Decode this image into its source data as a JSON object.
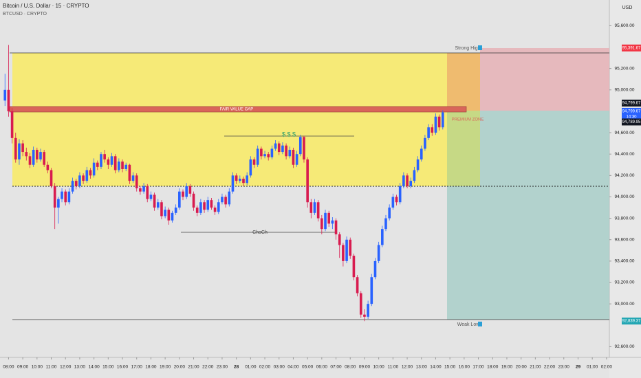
{
  "chart_data": {
    "type": "candlestick",
    "title": "Bitcoin / U.S. Dollar · 15 · CRYPTO",
    "subtitle": "BTCUSD · CRYPTO",
    "currency": "USD",
    "up_color": "#2962ff",
    "down_color": "#d81b4f",
    "grid": false,
    "xlim": [
      -0.6,
      42.2
    ],
    "ylim": [
      92500,
      95840
    ],
    "yticks": [
      {
        "value": 95600,
        "label": "95,600.00"
      },
      {
        "value": 95200,
        "label": "95,200.00"
      },
      {
        "value": 95000,
        "label": "95,000.00"
      },
      {
        "value": 94600,
        "label": "94,600.00"
      },
      {
        "value": 94400,
        "label": "94,400.00"
      },
      {
        "value": 94200,
        "label": "94,200.00"
      },
      {
        "value": 94000,
        "label": "94,000.00"
      },
      {
        "value": 93800,
        "label": "93,800.00"
      },
      {
        "value": 93600,
        "label": "93,600.00"
      },
      {
        "value": 93400,
        "label": "93,400.00"
      },
      {
        "value": 93200,
        "label": "93,200.00"
      },
      {
        "value": 93000,
        "label": "93,000.00"
      },
      {
        "value": 92600,
        "label": "92,600.00"
      }
    ],
    "xticks": [
      {
        "value": 0,
        "label": "08:00"
      },
      {
        "value": 1,
        "label": "09:00"
      },
      {
        "value": 2,
        "label": "10:00"
      },
      {
        "value": 3,
        "label": "11:00"
      },
      {
        "value": 4,
        "label": "12:00"
      },
      {
        "value": 5,
        "label": "13:00"
      },
      {
        "value": 6,
        "label": "14:00"
      },
      {
        "value": 7,
        "label": "15:00"
      },
      {
        "value": 8,
        "label": "16:00"
      },
      {
        "value": 9,
        "label": "17:00"
      },
      {
        "value": 10,
        "label": "18:00"
      },
      {
        "value": 11,
        "label": "19:00"
      },
      {
        "value": 12,
        "label": "20:00"
      },
      {
        "value": 13,
        "label": "21:00"
      },
      {
        "value": 14,
        "label": "22:00"
      },
      {
        "value": 15,
        "label": "23:00"
      },
      {
        "value": 16,
        "label": "28"
      },
      {
        "value": 17,
        "label": "01:00"
      },
      {
        "value": 18,
        "label": "02:00"
      },
      {
        "value": 19,
        "label": "03:00"
      },
      {
        "value": 20,
        "label": "04:00"
      },
      {
        "value": 21,
        "label": "05:00"
      },
      {
        "value": 22,
        "label": "06:00"
      },
      {
        "value": 23,
        "label": "07:00"
      },
      {
        "value": 24,
        "label": "08:00"
      },
      {
        "value": 25,
        "label": "09:00"
      },
      {
        "value": 26,
        "label": "10:00"
      },
      {
        "value": 27,
        "label": "11:00"
      },
      {
        "value": 28,
        "label": "12:00"
      },
      {
        "value": 29,
        "label": "13:00"
      },
      {
        "value": 30,
        "label": "14:00"
      },
      {
        "value": 31,
        "label": "15:00"
      },
      {
        "value": 32,
        "label": "16:00"
      },
      {
        "value": 33,
        "label": "17:00"
      },
      {
        "value": 34,
        "label": "18:00"
      },
      {
        "value": 35,
        "label": "19:00"
      },
      {
        "value": 36,
        "label": "20:00"
      },
      {
        "value": 37,
        "label": "21:00"
      },
      {
        "value": 38,
        "label": "22:00"
      },
      {
        "value": 39,
        "label": "23:00"
      },
      {
        "value": 40,
        "label": "29"
      },
      {
        "value": 41,
        "label": "01:00"
      },
      {
        "value": 42,
        "label": "02:00"
      }
    ],
    "x": [
      -0.25,
      0,
      0.25,
      0.5,
      0.75,
      1,
      1.25,
      1.5,
      1.75,
      2,
      2.25,
      2.5,
      2.75,
      3,
      3.25,
      3.5,
      3.75,
      4,
      4.25,
      4.5,
      4.75,
      5,
      5.25,
      5.5,
      5.75,
      6,
      6.25,
      6.5,
      6.75,
      7,
      7.25,
      7.5,
      7.75,
      8,
      8.25,
      8.5,
      8.75,
      9,
      9.25,
      9.5,
      9.75,
      10,
      10.25,
      10.5,
      10.75,
      11,
      11.25,
      11.5,
      11.75,
      12,
      12.25,
      12.5,
      12.75,
      13,
      13.25,
      13.5,
      13.75,
      14,
      14.25,
      14.5,
      14.75,
      15,
      15.25,
      15.5,
      15.75,
      16,
      16.25,
      16.5,
      16.75,
      17,
      17.25,
      17.5,
      17.75,
      18,
      18.25,
      18.5,
      18.75,
      19,
      19.25,
      19.5,
      19.75,
      20,
      20.25,
      20.5,
      20.75,
      21,
      21.25,
      21.5,
      21.75,
      22,
      22.25,
      22.5,
      22.75,
      23,
      23.25,
      23.5,
      23.75,
      24,
      24.25,
      24.5,
      24.75,
      25,
      25.25,
      25.5,
      25.75,
      26,
      26.25,
      26.5,
      26.75,
      27,
      27.25,
      27.5,
      27.75,
      28,
      28.25,
      28.5,
      28.75,
      29,
      29.25,
      29.5,
      29.75,
      30,
      30.25,
      30.5
    ],
    "candles": [
      [
        94900,
        95150,
        94850,
        95000
      ],
      [
        95000,
        95420,
        94750,
        94800
      ],
      [
        94800,
        94830,
        94500,
        94550
      ],
      [
        94550,
        94600,
        94320,
        94350
      ],
      [
        94350,
        94540,
        94300,
        94500
      ],
      [
        94500,
        94530,
        94380,
        94420
      ],
      [
        94420,
        94460,
        94340,
        94380
      ],
      [
        94380,
        94410,
        94270,
        94300
      ],
      [
        94300,
        94470,
        94280,
        94440
      ],
      [
        94440,
        94460,
        94320,
        94350
      ],
      [
        94350,
        94450,
        94330,
        94420
      ],
      [
        94420,
        94440,
        94280,
        94300
      ],
      [
        94300,
        94330,
        94220,
        94250
      ],
      [
        94250,
        94270,
        94080,
        94100
      ],
      [
        94100,
        94130,
        93700,
        93900
      ],
      [
        93900,
        94000,
        93750,
        93980
      ],
      [
        93980,
        94080,
        93950,
        94050
      ],
      [
        94050,
        94070,
        93920,
        93950
      ],
      [
        93950,
        94080,
        93930,
        94050
      ],
      [
        94050,
        94180,
        94030,
        94150
      ],
      [
        94150,
        94170,
        94070,
        94100
      ],
      [
        94100,
        94230,
        94080,
        94200
      ],
      [
        94200,
        94220,
        94120,
        94150
      ],
      [
        94150,
        94280,
        94130,
        94250
      ],
      [
        94250,
        94270,
        94170,
        94200
      ],
      [
        94200,
        94360,
        94180,
        94320
      ],
      [
        94320,
        94340,
        94250,
        94280
      ],
      [
        94280,
        94420,
        94260,
        94400
      ],
      [
        94400,
        94440,
        94320,
        94350
      ],
      [
        94350,
        94370,
        94260,
        94300
      ],
      [
        94300,
        94410,
        94280,
        94380
      ],
      [
        94380,
        94400,
        94220,
        94250
      ],
      [
        94250,
        94360,
        94230,
        94330
      ],
      [
        94330,
        94350,
        94230,
        94260
      ],
      [
        94260,
        94320,
        94240,
        94300
      ],
      [
        94300,
        94310,
        94120,
        94150
      ],
      [
        94150,
        94230,
        94130,
        94200
      ],
      [
        94200,
        94220,
        94050,
        94080
      ],
      [
        94080,
        94100,
        94020,
        94050
      ],
      [
        94050,
        94130,
        94030,
        94100
      ],
      [
        94100,
        94120,
        93950,
        93980
      ],
      [
        93980,
        94050,
        93960,
        94020
      ],
      [
        94020,
        94040,
        93870,
        93900
      ],
      [
        93900,
        93980,
        93880,
        93950
      ],
      [
        93950,
        93970,
        93790,
        93820
      ],
      [
        93820,
        93910,
        93800,
        93880
      ],
      [
        93880,
        93900,
        93740,
        93780
      ],
      [
        93780,
        93870,
        93760,
        93850
      ],
      [
        93850,
        93930,
        93830,
        93900
      ],
      [
        93900,
        94080,
        93880,
        94050
      ],
      [
        94050,
        94070,
        93970,
        94000
      ],
      [
        94000,
        94130,
        93980,
        94100
      ],
      [
        94100,
        94120,
        94000,
        94030
      ],
      [
        94030,
        94050,
        93870,
        93900
      ],
      [
        93900,
        93920,
        93820,
        93850
      ],
      [
        93850,
        93980,
        93830,
        93950
      ],
      [
        93950,
        93970,
        93850,
        93880
      ],
      [
        93880,
        94000,
        93860,
        93970
      ],
      [
        93970,
        93990,
        93880,
        93900
      ],
      [
        93900,
        93920,
        93830,
        93860
      ],
      [
        93860,
        93980,
        93840,
        93950
      ],
      [
        93950,
        94030,
        93930,
        94000
      ],
      [
        94000,
        94020,
        93900,
        93930
      ],
      [
        93930,
        94080,
        93910,
        94050
      ],
      [
        94050,
        94230,
        94030,
        94200
      ],
      [
        94200,
        94220,
        94120,
        94150
      ],
      [
        94150,
        94200,
        94130,
        94170
      ],
      [
        94170,
        94190,
        94100,
        94130
      ],
      [
        94130,
        94230,
        94110,
        94200
      ],
      [
        94200,
        94380,
        94180,
        94350
      ],
      [
        94350,
        94370,
        94270,
        94300
      ],
      [
        94300,
        94480,
        94280,
        94450
      ],
      [
        94450,
        94470,
        94350,
        94380
      ],
      [
        94380,
        94430,
        94360,
        94400
      ],
      [
        94400,
        94420,
        94340,
        94370
      ],
      [
        94370,
        94480,
        94350,
        94450
      ],
      [
        94450,
        94530,
        94430,
        94500
      ],
      [
        94500,
        94520,
        94390,
        94420
      ],
      [
        94420,
        94510,
        94400,
        94480
      ],
      [
        94480,
        94500,
        94350,
        94380
      ],
      [
        94380,
        94470,
        94360,
        94440
      ],
      [
        94440,
        94460,
        94270,
        94300
      ],
      [
        94300,
        94430,
        94280,
        94400
      ],
      [
        94400,
        94580,
        94380,
        94560
      ],
      [
        94560,
        94570,
        94320,
        94350
      ],
      [
        94350,
        94370,
        93900,
        93950
      ],
      [
        93950,
        93980,
        93800,
        93850
      ],
      [
        93850,
        93980,
        93830,
        93950
      ],
      [
        93950,
        93970,
        93770,
        93800
      ],
      [
        93800,
        93830,
        93650,
        93700
      ],
      [
        93700,
        93880,
        93680,
        93850
      ],
      [
        93850,
        93870,
        93720,
        93750
      ],
      [
        93750,
        93810,
        93700,
        93780
      ],
      [
        93780,
        93800,
        93600,
        93650
      ],
      [
        93650,
        93670,
        93430,
        93550
      ],
      [
        93550,
        93570,
        93350,
        93400
      ],
      [
        93400,
        93630,
        93380,
        93600
      ],
      [
        93600,
        93620,
        93420,
        93450
      ],
      [
        93450,
        93470,
        93220,
        93250
      ],
      [
        93250,
        93270,
        93070,
        93100
      ],
      [
        93100,
        93120,
        92870,
        92900
      ],
      [
        92900,
        92950,
        92839,
        92880
      ],
      [
        92880,
        93030,
        92860,
        93000
      ],
      [
        93000,
        93280,
        92980,
        93250
      ],
      [
        93250,
        93430,
        93230,
        93400
      ],
      [
        93400,
        93580,
        93380,
        93550
      ],
      [
        93550,
        93730,
        93530,
        93700
      ],
      [
        93700,
        93830,
        93680,
        93800
      ],
      [
        93800,
        93930,
        93780,
        93900
      ],
      [
        93900,
        94030,
        93880,
        94000
      ],
      [
        94000,
        94020,
        93920,
        93950
      ],
      [
        93950,
        94130,
        93930,
        94100
      ],
      [
        94100,
        94230,
        94080,
        94200
      ],
      [
        94200,
        94220,
        94080,
        94100
      ],
      [
        94100,
        94180,
        94080,
        94150
      ],
      [
        94150,
        94280,
        94130,
        94250
      ],
      [
        94250,
        94380,
        94230,
        94350
      ],
      [
        94350,
        94480,
        94330,
        94450
      ],
      [
        94450,
        94580,
        94430,
        94550
      ],
      [
        94550,
        94680,
        94530,
        94650
      ],
      [
        94650,
        94680,
        94570,
        94600
      ],
      [
        94600,
        94780,
        94580,
        94750
      ],
      [
        94750,
        94770,
        94620,
        94650
      ],
      [
        94650,
        94810,
        94630,
        94790
      ]
    ],
    "price_tags": [
      {
        "value": 95391.67,
        "label": "95,391.67",
        "color": "#f23645"
      },
      {
        "value": 94799.67,
        "label": "94,799.67",
        "color": "#2962ff",
        "time": "14:30"
      },
      {
        "value": 94789.95,
        "label": "94,789.95",
        "color": "#131722"
      },
      {
        "value": 92839.37,
        "label": "92,839.37",
        "color": "#22a6b3"
      }
    ],
    "crosshair_tag": {
      "value": 94799.67,
      "label": "94,799.67"
    },
    "annotations": {
      "strong_high": "Strong High",
      "weak_low": "Weak Low",
      "fvg": "FAIR VALUE GAP",
      "premium": "PREMIUM ZONE",
      "choch": "ChoCh",
      "liquidity": "$ $ $"
    }
  }
}
